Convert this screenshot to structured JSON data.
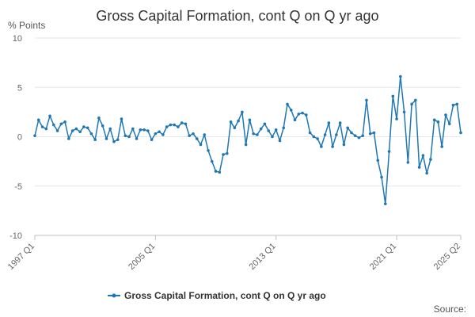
{
  "chart_data": {
    "type": "line",
    "title": "Gross Capital Formation, cont Q on Q yr ago",
    "ylabel": "% Points",
    "xlabel": "",
    "ylim": [
      -10,
      10
    ],
    "yticks": [
      10,
      5,
      0,
      -5,
      -10
    ],
    "xtick_labels": [
      "1997 Q1",
      "2005 Q1",
      "2013 Q1",
      "2021 Q1",
      "2025 Q2"
    ],
    "x_start": "1997 Q1",
    "x_end": "2025 Q2",
    "grid": true,
    "legend": "bottom",
    "source": "Source:",
    "series": [
      {
        "name": "Gross Capital Formation, cont Q on Q yr ago",
        "color": "#1f77b4",
        "values": [
          0.1,
          1.7,
          1.0,
          0.8,
          2.1,
          1.2,
          0.6,
          1.3,
          1.5,
          -0.2,
          0.6,
          0.8,
          0.5,
          1.0,
          0.9,
          0.3,
          -0.3,
          1.9,
          1.1,
          -0.2,
          0.8,
          -0.5,
          -0.3,
          1.8,
          0.1,
          0.0,
          0.8,
          -0.2,
          0.7,
          0.7,
          0.6,
          -0.3,
          0.3,
          0.5,
          0.2,
          1.0,
          1.2,
          1.2,
          1.0,
          1.4,
          1.3,
          0.1,
          0.3,
          -0.2,
          -0.8,
          0.2,
          -1.4,
          -2.5,
          -3.5,
          -3.6,
          -1.8,
          -1.7,
          1.5,
          0.9,
          1.6,
          2.5,
          -0.8,
          1.7,
          0.3,
          0.2,
          0.8,
          1.3,
          0.6,
          0.0,
          0.7,
          -0.4,
          0.9,
          3.3,
          2.7,
          1.7,
          2.3,
          2.4,
          2.2,
          0.4,
          0.0,
          -0.2,
          -1.0,
          0.2,
          1.4,
          -1.0,
          0.2,
          1.4,
          -0.8,
          0.9,
          0.4,
          0.1,
          -0.1,
          0.1,
          3.7,
          0.3,
          0.4,
          -2.4,
          -4.1,
          -6.8,
          -1.5,
          4.1,
          1.8,
          6.1,
          2.5,
          -2.6,
          3.3,
          3.7,
          -3.1,
          -1.9,
          -3.7,
          -2.3,
          1.7,
          1.5,
          -1.0,
          2.2,
          1.3,
          3.2,
          3.3,
          0.4
        ]
      }
    ]
  }
}
